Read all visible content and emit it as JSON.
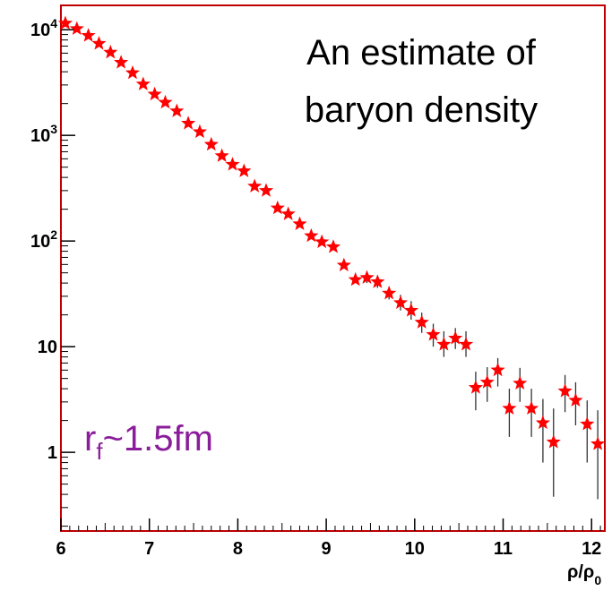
{
  "chart_data": {
    "type": "scatter",
    "title": "",
    "annotation": {
      "line1": "An estimate of",
      "line2": "baryon density"
    },
    "radius_label": {
      "main": "r",
      "sub": "f",
      "rest": "~1.5fm"
    },
    "xlabel": {
      "main": "ρ/ρ",
      "sub": "0"
    },
    "ylabel": "",
    "xlim": [
      6,
      12.15
    ],
    "ylim": [
      0.18,
      17000
    ],
    "y_scale": "log",
    "x_ticks": [
      6,
      7,
      8,
      9,
      10,
      11,
      12
    ],
    "x_tick_labels": [
      "6",
      "7",
      "8",
      "9",
      "10",
      "11",
      "12"
    ],
    "y_ticks": [
      {
        "value": 1,
        "base": "1",
        "exp": ""
      },
      {
        "value": 10,
        "base": "10",
        "exp": ""
      },
      {
        "value": 100,
        "base": "10",
        "exp": "2"
      },
      {
        "value": 1000,
        "base": "10",
        "exp": "3"
      },
      {
        "value": 10000,
        "base": "10",
        "exp": "4"
      }
    ],
    "grid": false,
    "marker_color": "#ff0000",
    "frame_color": "#c00000",
    "series": [
      {
        "points": [
          {
            "x": 6.05,
            "y": 11500
          },
          {
            "x": 6.18,
            "y": 10200
          },
          {
            "x": 6.31,
            "y": 8800
          },
          {
            "x": 6.43,
            "y": 7400
          },
          {
            "x": 6.56,
            "y": 6100
          },
          {
            "x": 6.68,
            "y": 4900
          },
          {
            "x": 6.81,
            "y": 3900
          },
          {
            "x": 6.93,
            "y": 3050
          },
          {
            "x": 7.06,
            "y": 2450
          },
          {
            "x": 7.18,
            "y": 2050
          },
          {
            "x": 7.31,
            "y": 1700
          },
          {
            "x": 7.44,
            "y": 1300
          },
          {
            "x": 7.57,
            "y": 1080
          },
          {
            "x": 7.7,
            "y": 820
          },
          {
            "x": 7.82,
            "y": 640
          },
          {
            "x": 7.94,
            "y": 530
          },
          {
            "x": 8.07,
            "y": 460
          },
          {
            "x": 8.19,
            "y": 330
          },
          {
            "x": 8.32,
            "y": 300
          },
          {
            "x": 8.45,
            "y": 205
          },
          {
            "x": 8.57,
            "y": 180
          },
          {
            "x": 8.7,
            "y": 145
          },
          {
            "x": 8.83,
            "y": 112
          },
          {
            "x": 8.95,
            "y": 98
          },
          {
            "x": 9.08,
            "y": 88
          },
          {
            "x": 9.2,
            "y": 59
          },
          {
            "x": 9.33,
            "y": 43
          },
          {
            "x": 9.46,
            "y": 45,
            "err": [
              40,
              51
            ]
          },
          {
            "x": 9.58,
            "y": 41,
            "err": [
              36,
              47
            ]
          },
          {
            "x": 9.71,
            "y": 32,
            "err": [
              28,
              37
            ]
          },
          {
            "x": 9.84,
            "y": 26,
            "err": [
              22,
              31
            ]
          },
          {
            "x": 9.96,
            "y": 22,
            "err": [
              18,
              27
            ]
          },
          {
            "x": 10.08,
            "y": 17,
            "err": [
              13.5,
              21
            ]
          },
          {
            "x": 10.21,
            "y": 13,
            "err": [
              10,
              16.5
            ]
          },
          {
            "x": 10.33,
            "y": 10.5,
            "err": [
              8,
              14
            ]
          },
          {
            "x": 10.46,
            "y": 12,
            "err": [
              9.5,
              15
            ]
          },
          {
            "x": 10.58,
            "y": 10.5,
            "err": [
              8,
              14
            ]
          },
          {
            "x": 10.69,
            "y": 4.1,
            "err": [
              2.5,
              5.8
            ]
          },
          {
            "x": 10.82,
            "y": 4.6,
            "err": [
              3,
              6.4
            ]
          },
          {
            "x": 10.94,
            "y": 6.0,
            "err": [
              4.2,
              7.8
            ]
          },
          {
            "x": 11.07,
            "y": 2.6,
            "err": [
              1.4,
              4.0
            ]
          },
          {
            "x": 11.19,
            "y": 4.5,
            "err": [
              3.0,
              6.3
            ]
          },
          {
            "x": 11.32,
            "y": 2.6,
            "err": [
              1.4,
              4.0
            ]
          },
          {
            "x": 11.45,
            "y": 1.9,
            "err": [
              0.8,
              3.2
            ]
          },
          {
            "x": 11.57,
            "y": 1.25,
            "err": [
              0.38,
              2.6
            ]
          },
          {
            "x": 11.7,
            "y": 3.8,
            "err": [
              2.4,
              5.4
            ]
          },
          {
            "x": 11.82,
            "y": 3.1,
            "err": [
              1.8,
              4.6
            ]
          },
          {
            "x": 11.95,
            "y": 1.85,
            "err": [
              0.8,
              3.1
            ]
          },
          {
            "x": 12.07,
            "y": 1.2,
            "err": [
              0.36,
              2.5
            ]
          }
        ]
      }
    ]
  }
}
